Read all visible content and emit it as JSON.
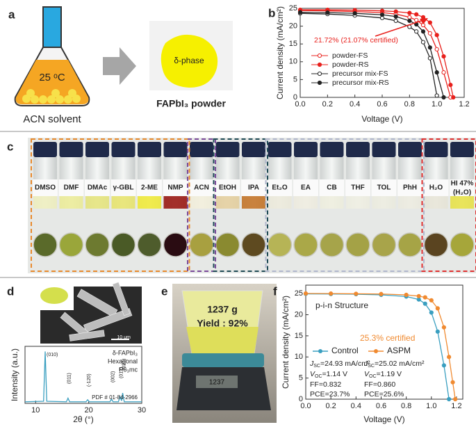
{
  "panel_labels": {
    "a": "a",
    "b": "b",
    "c": "c",
    "d": "d",
    "e": "e",
    "f": "f"
  },
  "a": {
    "temperature": "25 ᵒC",
    "solvent": "ACN solvent",
    "phase": "δ-phase",
    "product": "FAPbI₃ powder"
  },
  "c": {
    "vials": [
      {
        "label": "DMSO",
        "color": "#eeeec0"
      },
      {
        "label": "DMF",
        "color": "#ecec9a"
      },
      {
        "label": "DMAc",
        "color": "#e6e47e"
      },
      {
        "label": "γ-GBL",
        "color": "#e8e470"
      },
      {
        "label": "2-ME",
        "color": "#f0ea3c"
      },
      {
        "label": "NMP",
        "color": "#9a1a14"
      },
      {
        "label": "ACN",
        "color": "#f2eedc"
      },
      {
        "label": "EtOH",
        "color": "#e4cfa0"
      },
      {
        "label": "IPA",
        "color": "#c4752a"
      },
      {
        "label": "Et₂O",
        "color": "#eceadc"
      },
      {
        "label": "EA",
        "color": "#eeece0"
      },
      {
        "label": "CB",
        "color": "#eeeedf"
      },
      {
        "label": "THF",
        "color": "#eeeee2"
      },
      {
        "label": "TOL",
        "color": "#ecece0"
      },
      {
        "label": "PhH",
        "color": "#ecebe0"
      },
      {
        "label": "H₂O",
        "color": "#e8e6d8"
      },
      {
        "label": "HI 47%",
        "label2": "(H₂O)",
        "color": "#e8e24a"
      }
    ]
  },
  "d": {
    "scale_bar": "10 μm"
  },
  "e": {
    "mass": "1237 g",
    "yield": "Yield : 92%",
    "display": "1237"
  },
  "chart_data": [
    {
      "type": "line",
      "ylabel": "Current density (mA/cm²)",
      "xlabel": "Voltage (V)",
      "x": [
        0,
        0.2,
        0.4,
        0.6,
        0.7,
        0.8,
        0.85,
        0.9,
        0.95,
        1.0,
        1.05,
        1.1,
        1.12
      ],
      "series": [
        {
          "name": "powder-FS",
          "color": "#e8201c",
          "marker": "open",
          "values": [
            24.4,
            24.3,
            24.1,
            23.8,
            23.4,
            22.5,
            21.7,
            20.3,
            18.0,
            13.5,
            7.0,
            0,
            null
          ]
        },
        {
          "name": "powder-RS",
          "color": "#e8201c",
          "marker": "filled",
          "values": [
            24.6,
            24.6,
            24.5,
            24.3,
            24.1,
            23.7,
            23.3,
            22.5,
            21.0,
            17.5,
            11.5,
            3.5,
            0
          ]
        },
        {
          "name": "precursor mix-FS",
          "color": "#222222",
          "marker": "open",
          "values": [
            23.6,
            23.4,
            23.0,
            22.3,
            21.5,
            19.8,
            18.5,
            15.5,
            11.0,
            0.5,
            null,
            null,
            null
          ]
        },
        {
          "name": "precursor mix-RS",
          "color": "#222222",
          "marker": "filled",
          "values": [
            23.9,
            23.8,
            23.6,
            23.2,
            22.7,
            21.5,
            20.5,
            18.5,
            14.0,
            7.0,
            0,
            null,
            null
          ]
        }
      ],
      "xlim": [
        0,
        1.2
      ],
      "xticks": [
        {
          "value": 0,
          "label": "0.0"
        },
        0.2,
        0.4,
        0.6,
        0.8,
        {
          "value": 1,
          "label": "1.0"
        },
        1.2
      ],
      "ylim": [
        0,
        25
      ],
      "yticks": [
        0,
        5,
        10,
        15,
        20,
        25
      ],
      "legend": "lower left",
      "annotation": "21.72% (21.07% certified)"
    },
    {
      "type": "line",
      "ylabel": "Current density (mA/cm²)",
      "xlabel": "Voltage (V)",
      "x": [
        0,
        0.2,
        0.4,
        0.6,
        0.8,
        0.9,
        0.95,
        1.0,
        1.05,
        1.1,
        1.14,
        1.17,
        1.19
      ],
      "series": [
        {
          "name": "Control",
          "color": "#3a9fc0",
          "marker": "filled",
          "values": [
            24.93,
            24.9,
            24.85,
            24.7,
            24.3,
            23.6,
            22.6,
            20.5,
            16,
            8,
            0,
            null,
            null
          ]
        },
        {
          "name": "ASPM",
          "color": "#f08a30",
          "marker": "filled",
          "values": [
            25.02,
            25.0,
            24.95,
            24.9,
            24.7,
            24.4,
            24.1,
            23.4,
            21.5,
            17,
            10,
            4,
            0
          ]
        }
      ],
      "xlim": [
        0,
        1.25
      ],
      "xticks": [
        {
          "value": 0,
          "label": "0.0"
        },
        0.2,
        0.4,
        0.6,
        0.8,
        {
          "value": 1,
          "label": "1.0"
        },
        1.2
      ],
      "ylim": [
        0,
        27
      ],
      "yticks": [
        0,
        5,
        10,
        15,
        20,
        25
      ],
      "legend": "center left",
      "structure": "p-i-n Structure",
      "certified": "25.3% certified",
      "stats": [
        {
          "jsc": {
            "sym": "J",
            "sub": "SC",
            "text": "=24.93 mA/cm²"
          },
          "voc": {
            "sym": "V",
            "sub": "OC",
            "text": "=1.14 V"
          },
          "ff": "FF=0.832",
          "pce": "PCE=23.7%"
        },
        {
          "jsc": {
            "sym": "J",
            "sub": "SC",
            "text": "=25.02 mA/cm²"
          },
          "voc": {
            "sym": "V",
            "sub": "OC",
            "text": "=1.19 V"
          },
          "ff": "FF=0.860",
          "pce": "PCE=25.6%"
        }
      ]
    },
    {
      "type": "line",
      "ylabel": "Intensity (a.u.)",
      "xlabel": "2θ (°)",
      "color": "#3a9fc0",
      "x": [
        8,
        11.5,
        11.8,
        12.1,
        15.8,
        16.1,
        16.4,
        19.5,
        19.8,
        20.1,
        24,
        24.3,
        24.6,
        25.6,
        25.9,
        26.2,
        26.4,
        26.7,
        30
      ],
      "values": [
        3,
        4,
        100,
        4,
        3,
        10,
        3,
        3,
        7,
        3,
        3,
        8,
        3,
        3,
        13,
        5,
        20,
        3,
        3
      ],
      "xlim": [
        8,
        30
      ],
      "xticks": [
        10,
        20,
        30
      ],
      "ylim": [
        0,
        110
      ],
      "peaks": [
        {
          "x": 11.8,
          "label": "(010)"
        },
        {
          "x": 16.1,
          "label": "(011)"
        },
        {
          "x": 19.8,
          "label": "(-120)"
        },
        {
          "x": 24.3,
          "label": "(002)"
        },
        {
          "x": 25.9,
          "label": "(012)"
        },
        {
          "x": 26.4,
          "label": "(021)"
        }
      ],
      "legend_lines": [
        "δ-FAPbI₃",
        "Hexagonal",
        "P6₃mc"
      ],
      "reference": "PDF # 01-84-2966"
    }
  ]
}
